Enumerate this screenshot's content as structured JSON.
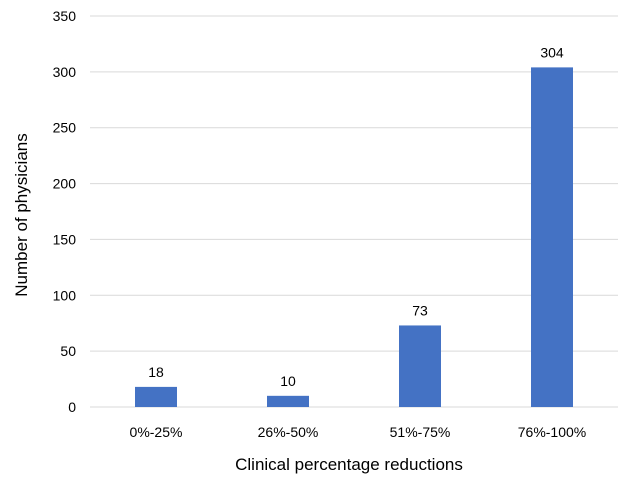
{
  "chart_data": {
    "type": "bar",
    "title": "",
    "xlabel": "Clinical percentage reductions",
    "ylabel": "Number of physicians",
    "categories": [
      "0%-25%",
      "26%-50%",
      "51%-75%",
      "76%-100%"
    ],
    "values": [
      18,
      10,
      73,
      304
    ],
    "data_labels": [
      "18",
      "10",
      "73",
      "304"
    ],
    "ylim": [
      0,
      350
    ],
    "yticks": [
      0,
      50,
      100,
      150,
      200,
      250,
      300,
      350
    ],
    "ytick_labels": [
      "0",
      "50",
      "100",
      "150",
      "200",
      "250",
      "300",
      "350"
    ],
    "grid": true,
    "legend": "none",
    "bar_color": "#4472c4"
  }
}
